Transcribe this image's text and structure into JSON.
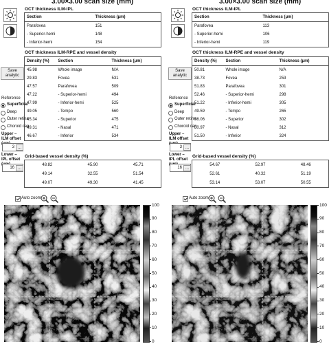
{
  "panels": [
    {
      "title": "3.00×3.00 scan size (mm)",
      "ilm_ipl": {
        "heading": "OCT thickness ILM-IPL",
        "columns": [
          "Section",
          "Thickness (μm)"
        ],
        "rows": [
          [
            "Parafovea",
            "151"
          ],
          [
            "- Superior-hemi",
            "148"
          ],
          [
            "- Inferior-hemi",
            "154"
          ]
        ]
      },
      "ilm_rpe": {
        "heading": "OCT thickness ILM-RPE and vessel density",
        "columns": [
          "Density (%)",
          "Section",
          "Thickness (μm)"
        ],
        "rows": [
          [
            "45.98",
            "Whole image",
            "N/A"
          ],
          [
            "29.83",
            "Fovea",
            "531"
          ],
          [
            "47.57",
            "Parafovea",
            "509"
          ],
          [
            "47.22",
            "- Superior-hemi",
            "494"
          ],
          [
            "47.99",
            "- Inferior-hemi",
            "525"
          ],
          [
            "49.05",
            "- Tempo",
            "560"
          ],
          [
            "45.34",
            "- Superior",
            "475"
          ],
          [
            "49.31",
            "- Nasal",
            "471"
          ],
          [
            "46.67",
            "- Inferior",
            "534"
          ]
        ]
      },
      "grid": {
        "heading": "Grid-based vessel density (%)",
        "rows": [
          [
            "48.82",
            "45.90",
            "45.71"
          ],
          [
            "49.14",
            "32.55",
            "51.54"
          ],
          [
            "49.07",
            "49.30",
            "41.45"
          ]
        ]
      },
      "sidebar": {
        "save_button": "Save analytic",
        "reference": {
          "label": "Reference",
          "options": [
            "Superficial",
            "Deep",
            "Outer retina",
            "Choroid cap"
          ],
          "selected": 0
        },
        "upper": {
          "label": "Upper – ILM offset (μm)",
          "value": "3",
          "button": "..."
        },
        "lower": {
          "label": "Lower – IPL offset (μm)",
          "value": "16",
          "button": "..."
        }
      },
      "auto_zoom": {
        "label": "Auto zoom",
        "checked": true
      },
      "colorbar": {
        "range": [
          0,
          100
        ],
        "ticks": [
          0,
          10,
          20,
          30,
          40,
          50,
          60,
          70,
          80,
          90,
          100
        ]
      }
    },
    {
      "title": "3.00×3.00 scan size (mm)",
      "ilm_ipl": {
        "heading": "OCT thickness ILM-IPL",
        "columns": [
          "Section",
          "Thickness (μm)"
        ],
        "rows": [
          [
            "Parafovea",
            "113"
          ],
          [
            "- Superior-hemi",
            "106"
          ],
          [
            "- Inferior-hemi",
            "119"
          ]
        ]
      },
      "ilm_rpe": {
        "heading": "OCT thickness ILM-RPE and vessel density",
        "columns": [
          "Density (%)",
          "Section",
          "Thickness (μm)"
        ],
        "rows": [
          [
            "50.81",
            "Whole image",
            "N/A"
          ],
          [
            "38.73",
            "Fovea",
            "253"
          ],
          [
            "51.83",
            "Parafovea",
            "301"
          ],
          [
            "52.46",
            "- Superior-hemi",
            "298"
          ],
          [
            "51.22",
            "- Inferior-hemi",
            "305"
          ],
          [
            "49.59",
            "- Tempo",
            "265"
          ],
          [
            "56.06",
            "- Superior",
            "302"
          ],
          [
            "50.97",
            "- Nasal",
            "312"
          ],
          [
            "51.50",
            "- Inferior",
            "324"
          ]
        ]
      },
      "grid": {
        "heading": "Grid-based vessel density (%)",
        "rows": [
          [
            "54.67",
            "52.97",
            "48.46"
          ],
          [
            "52.61",
            "40.32",
            "51.19"
          ],
          [
            "53.14",
            "53.07",
            "50.55"
          ]
        ]
      },
      "sidebar": {
        "save_button": "Save analytic",
        "reference": {
          "label": "Reference",
          "options": [
            "Superficial",
            "Deep",
            "Outer retina",
            "Choroid cap"
          ],
          "selected": 0
        },
        "upper": {
          "label": "Upper – ILM offset (μm)",
          "value": "3",
          "button": "..."
        },
        "lower": {
          "label": "Lower – IPL offset (μm)",
          "value": "16",
          "button": "..."
        }
      },
      "auto_zoom": {
        "label": "Auto zoom",
        "checked": true
      },
      "colorbar": {
        "range": [
          0,
          100
        ],
        "ticks": [
          0,
          10,
          20,
          30,
          40,
          50,
          60,
          70,
          80,
          90,
          100
        ]
      }
    }
  ]
}
